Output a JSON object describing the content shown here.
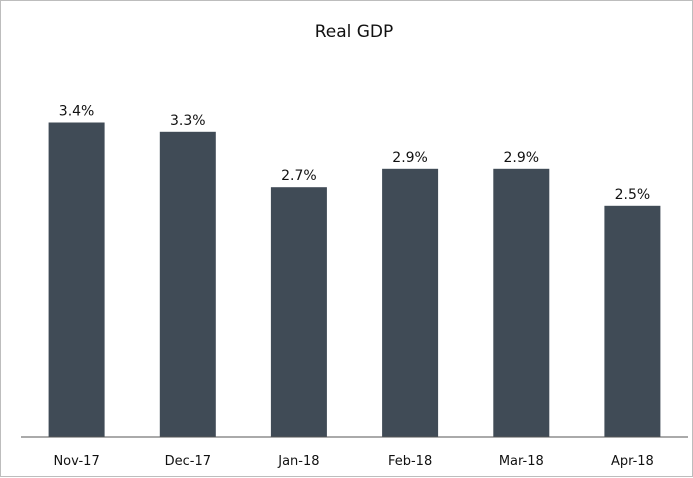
{
  "chart_data": {
    "type": "bar",
    "title": "Real GDP",
    "categories": [
      "Nov-17",
      "Dec-17",
      "Jan-18",
      "Feb-18",
      "Mar-18",
      "Apr-18"
    ],
    "values": [
      3.4,
      3.3,
      2.7,
      2.9,
      2.9,
      2.5
    ],
    "data_labels": [
      "3.4%",
      "3.3%",
      "2.7%",
      "2.9%",
      "2.9%",
      "2.5%"
    ],
    "xlabel": "",
    "ylabel": "",
    "ylim": [
      0,
      4.0
    ],
    "grid": false,
    "legend": false,
    "bar_color": "#404b56"
  }
}
